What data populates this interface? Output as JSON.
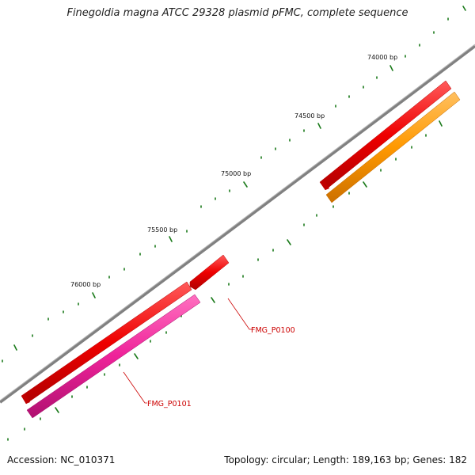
{
  "title": "Finegoldia magna ATCC 29328 plasmid pFMC, complete sequence",
  "footer": {
    "accession": "Accession: NC_010371",
    "summary": "Topology: circular; Length: 189,163 bp; Genes: 182"
  },
  "ticks": [
    "74000 bp",
    "74500 bp",
    "75000 bp",
    "75500 bp",
    "76000 bp"
  ],
  "genes": [
    {
      "name": "FMG_P0100",
      "color": "#ee0000"
    },
    {
      "name": "FMG_P0101",
      "color": "#ee0000"
    }
  ],
  "colors": {
    "backbone": "#808080",
    "forward_gene": "#ee0000",
    "reverse_gene_a": "#ff9900",
    "reverse_gene_b": "#ee2299",
    "tick": "#1a7a1a",
    "label_line": "#cc0000"
  }
}
